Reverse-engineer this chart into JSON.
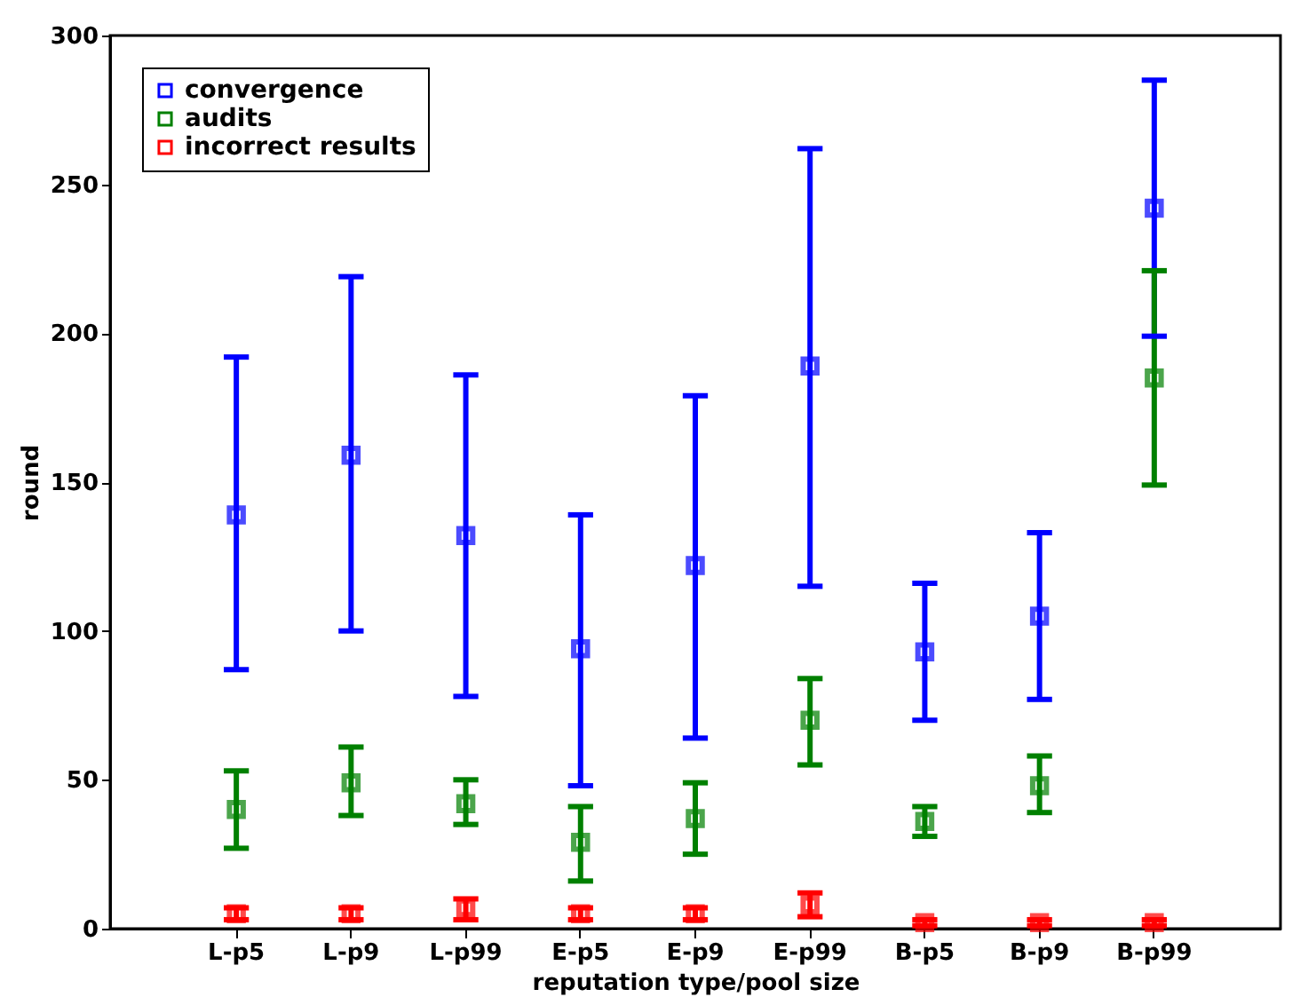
{
  "chart_data": {
    "type": "scatter",
    "categories": [
      "L-p5",
      "L-p9",
      "L-p99",
      "E-p5",
      "E-p9",
      "E-p99",
      "B-p5",
      "B-p9",
      "B-p99"
    ],
    "xlabel": "reputation type/pool size",
    "ylabel": "round",
    "ylim": [
      0,
      300
    ],
    "yticks": [
      0,
      50,
      100,
      150,
      200,
      250,
      300
    ],
    "grid": false,
    "legend": "top left",
    "marker": "square",
    "series": [
      {
        "name": "convergence",
        "color": "#0000ff",
        "values": [
          139,
          159,
          132,
          94,
          122,
          189,
          93,
          105,
          242
        ],
        "errors": [
          [
            87,
            192
          ],
          [
            100,
            219
          ],
          [
            78,
            186
          ],
          [
            48,
            139
          ],
          [
            64,
            179
          ],
          [
            115,
            262
          ],
          [
            70,
            116
          ],
          [
            77,
            133
          ],
          [
            199,
            285
          ]
        ]
      },
      {
        "name": "audits",
        "color": "#008000",
        "values": [
          40,
          49,
          42,
          29,
          37,
          70,
          36,
          48,
          185
        ],
        "errors": [
          [
            27,
            53
          ],
          [
            38,
            61
          ],
          [
            35,
            50
          ],
          [
            16,
            41
          ],
          [
            25,
            49
          ],
          [
            55,
            84
          ],
          [
            31,
            41
          ],
          [
            39,
            58
          ],
          [
            149,
            221
          ]
        ]
      },
      {
        "name": "incorrect results",
        "color": "#ff0000",
        "values": [
          5,
          5,
          7,
          5,
          5,
          8,
          2,
          2,
          2
        ],
        "errors": [
          [
            3,
            7
          ],
          [
            3,
            7
          ],
          [
            3,
            10
          ],
          [
            3,
            7
          ],
          [
            3,
            7
          ],
          [
            4,
            12
          ],
          [
            1,
            3
          ],
          [
            1,
            3
          ],
          [
            1,
            3
          ]
        ]
      }
    ]
  }
}
